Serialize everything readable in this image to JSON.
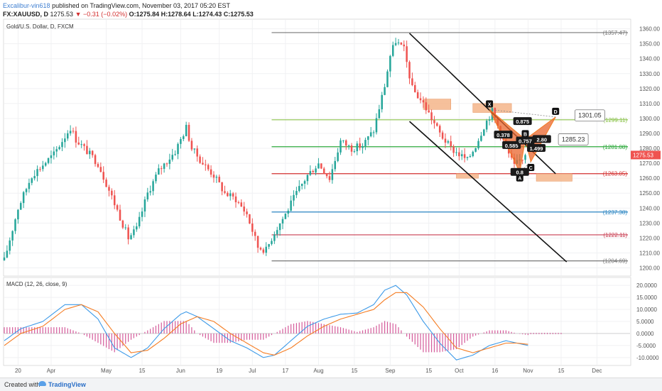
{
  "header": {
    "user": "Excalibur-vin618",
    "published_text": "published on TradingView.com, November 03, 2017 05:20 EST",
    "symbol": "FX:XAUUSD, D",
    "last": "1275.53",
    "change": "−0.31 (−0.02%)",
    "o": "O:1275.84",
    "h": "H:1278.64",
    "l": "L:1274.43",
    "c": "C:1275.53"
  },
  "footer": {
    "created_with": "Created with",
    "brand": "TradingView"
  },
  "colors": {
    "up": "#26a69a",
    "down": "#ef5350",
    "macd": "#3d9ae8",
    "signal": "#f57c22",
    "hist": "#d45a9a",
    "zone": "#f5b58a",
    "pattern": "#f57c22",
    "pattern_fill": "#e8642c"
  },
  "chart_data": [
    {
      "type": "candlestick",
      "title": "Gold/U.S. Dollar, D, FXCM",
      "ylim": [
        1195,
        1366
      ],
      "yticks": [
        1200,
        1210,
        1220,
        1230,
        1240,
        1250,
        1260,
        1270,
        1280,
        1290,
        1300,
        1310,
        1320,
        1330,
        1340,
        1350,
        1360
      ],
      "xlim": [
        0,
        227
      ],
      "xticks": [
        {
          "x": 5,
          "label": "20"
        },
        {
          "x": 17,
          "label": "Apr"
        },
        {
          "x": 37,
          "label": "May"
        },
        {
          "x": 50,
          "label": "15"
        },
        {
          "x": 64,
          "label": "Jun"
        },
        {
          "x": 78,
          "label": "19"
        },
        {
          "x": 90,
          "label": "Jul"
        },
        {
          "x": 102,
          "label": "17"
        },
        {
          "x": 114,
          "label": "Aug"
        },
        {
          "x": 127,
          "label": "15"
        },
        {
          "x": 140,
          "label": "Sep"
        },
        {
          "x": 154,
          "label": "15"
        },
        {
          "x": 165,
          "label": "Oct"
        },
        {
          "x": 178,
          "label": "16"
        },
        {
          "x": 190,
          "label": "Nov"
        },
        {
          "x": 202,
          "label": "15"
        },
        {
          "x": 215,
          "label": "Dec"
        }
      ],
      "last_price": 1275.53,
      "last_price_label": "1275.53",
      "anchors": [
        [
          0,
          1205
        ],
        [
          5,
          1240
        ],
        [
          10,
          1262
        ],
        [
          18,
          1276
        ],
        [
          24,
          1294
        ],
        [
          26,
          1286
        ],
        [
          30,
          1278
        ],
        [
          34,
          1270
        ],
        [
          38,
          1252
        ],
        [
          42,
          1234
        ],
        [
          45,
          1220
        ],
        [
          48,
          1226
        ],
        [
          52,
          1250
        ],
        [
          56,
          1265
        ],
        [
          62,
          1278
        ],
        [
          66,
          1294
        ],
        [
          68,
          1280
        ],
        [
          72,
          1270
        ],
        [
          76,
          1262
        ],
        [
          80,
          1250
        ],
        [
          84,
          1246
        ],
        [
          88,
          1236
        ],
        [
          92,
          1214
        ],
        [
          95,
          1212
        ],
        [
          98,
          1224
        ],
        [
          102,
          1236
        ],
        [
          106,
          1250
        ],
        [
          110,
          1262
        ],
        [
          114,
          1270
        ],
        [
          118,
          1260
        ],
        [
          122,
          1285
        ],
        [
          126,
          1280
        ],
        [
          130,
          1282
        ],
        [
          134,
          1292
        ],
        [
          138,
          1322
        ],
        [
          140,
          1342
        ],
        [
          142,
          1352
        ],
        [
          145,
          1346
        ],
        [
          148,
          1320
        ],
        [
          152,
          1310
        ],
        [
          155,
          1300
        ],
        [
          158,
          1290
        ],
        [
          162,
          1280
        ],
        [
          165,
          1276
        ],
        [
          168,
          1272
        ],
        [
          171,
          1282
        ],
        [
          174,
          1295
        ],
        [
          177,
          1305
        ],
        [
          180,
          1290
        ],
        [
          183,
          1276
        ],
        [
          185,
          1268
        ],
        [
          187,
          1272
        ],
        [
          189,
          1275.5
        ]
      ],
      "last_bar": 189,
      "fib_levels": [
        {
          "price": 1357.47,
          "label": "(1357.47)",
          "color": "#787878"
        },
        {
          "price": 1299.11,
          "label": "(1299.11)",
          "color": "#8bc34a"
        },
        {
          "price": 1281.08,
          "label": "(1281.08)",
          "color": "#2eaa3c"
        },
        {
          "price": 1263.05,
          "label": "(1263.05)",
          "color": "#d32f2f"
        },
        {
          "price": 1237.38,
          "label": "(1237.38)",
          "color": "#2a85c2"
        },
        {
          "price": 1222.11,
          "label": "(1222.11)",
          "color": "#c83c50"
        },
        {
          "price": 1204.69,
          "label": "(1204.69)",
          "color": "#787878"
        }
      ],
      "fib_x_start": 97,
      "channel": [
        {
          "from": [
            147,
            1357
          ],
          "to": [
            200,
            1263
          ]
        },
        {
          "from": [
            147,
            1298
          ],
          "to": [
            204,
            1204
          ]
        }
      ],
      "zones": [
        {
          "x1": 152,
          "x2": 162,
          "p1": 1313,
          "p2": 1306
        },
        {
          "x1": 170,
          "x2": 184,
          "p1": 1310,
          "p2": 1304
        },
        {
          "x1": 164,
          "x2": 172,
          "p1": 1263,
          "p2": 1260
        },
        {
          "x1": 193,
          "x2": 206,
          "p1": 1263,
          "p2": 1258
        }
      ],
      "harmonic_points": [
        {
          "id": "X",
          "x": 176,
          "price": 1306,
          "label": "X"
        },
        {
          "id": "A",
          "x": 187,
          "price": 1264,
          "label": "A"
        },
        {
          "id": "B",
          "x": 189,
          "price": 1286,
          "label": "B"
        },
        {
          "id": "C",
          "x": 191,
          "price": 1271,
          "label": "C"
        },
        {
          "id": "D",
          "x": 200,
          "price": 1301,
          "label": "D"
        }
      ],
      "ratios": [
        {
          "x": 188,
          "price": 1298,
          "text": "0.875"
        },
        {
          "x": 181,
          "price": 1289,
          "text": "0.378"
        },
        {
          "x": 184,
          "price": 1282,
          "text": "0.585"
        },
        {
          "x": 189,
          "price": 1285,
          "text": "0.757"
        },
        {
          "x": 193,
          "price": 1280,
          "text": "1.499"
        },
        {
          "x": 195,
          "price": 1286,
          "text": "2.80"
        },
        {
          "x": 187,
          "price": 1264,
          "text": "0.8"
        }
      ],
      "callouts": [
        {
          "x": 207,
          "price": 1302,
          "text": "1301.05"
        },
        {
          "x": 201,
          "price": 1286,
          "text": "1285.23"
        }
      ]
    },
    {
      "type": "line",
      "title": "MACD (12, 26, close, 9)",
      "ylim": [
        -13,
        23
      ],
      "yticks": [
        20,
        15,
        10,
        5,
        0,
        -5,
        -10
      ],
      "ytick_labels": [
        "20.0000",
        "15.0000",
        "10.0000",
        "5.0000",
        "0.0000",
        "-5.0000",
        "-10.0000"
      ],
      "series": [
        {
          "key": "macd",
          "anchors": [
            [
              0,
              -3
            ],
            [
              6,
              2
            ],
            [
              14,
              5
            ],
            [
              22,
              12
            ],
            [
              28,
              12
            ],
            [
              34,
              6
            ],
            [
              40,
              -6
            ],
            [
              46,
              -10
            ],
            [
              52,
              -6
            ],
            [
              58,
              2
            ],
            [
              64,
              8
            ],
            [
              66,
              9
            ],
            [
              70,
              7
            ],
            [
              76,
              2
            ],
            [
              82,
              -3
            ],
            [
              88,
              -6
            ],
            [
              94,
              -10
            ],
            [
              98,
              -9
            ],
            [
              104,
              -3
            ],
            [
              110,
              3
            ],
            [
              116,
              6
            ],
            [
              122,
              8
            ],
            [
              128,
              8.5
            ],
            [
              134,
              12
            ],
            [
              138,
              18
            ],
            [
              142,
              20
            ],
            [
              146,
              16
            ],
            [
              152,
              5
            ],
            [
              158,
              -4
            ],
            [
              164,
              -11
            ],
            [
              170,
              -9
            ],
            [
              176,
              -5
            ],
            [
              182,
              -3
            ],
            [
              186,
              -4
            ],
            [
              190,
              -5
            ]
          ]
        },
        {
          "key": "signal",
          "anchors": [
            [
              0,
              -5
            ],
            [
              6,
              0
            ],
            [
              14,
              3
            ],
            [
              22,
              10
            ],
            [
              28,
              12
            ],
            [
              34,
              9
            ],
            [
              40,
              0
            ],
            [
              46,
              -8
            ],
            [
              52,
              -7
            ],
            [
              58,
              -2
            ],
            [
              64,
              4
            ],
            [
              70,
              7
            ],
            [
              76,
              5
            ],
            [
              82,
              0
            ],
            [
              88,
              -4
            ],
            [
              94,
              -8
            ],
            [
              98,
              -9
            ],
            [
              104,
              -6
            ],
            [
              110,
              -1
            ],
            [
              116,
              3
            ],
            [
              122,
              6
            ],
            [
              128,
              8
            ],
            [
              134,
              10
            ],
            [
              138,
              14
            ],
            [
              142,
              17
            ],
            [
              146,
              17
            ],
            [
              152,
              11
            ],
            [
              158,
              2
            ],
            [
              164,
              -6
            ],
            [
              170,
              -8
            ],
            [
              176,
              -6
            ],
            [
              182,
              -4
            ],
            [
              186,
              -4
            ],
            [
              190,
              -4.5
            ]
          ]
        }
      ],
      "last_bar": 190
    }
  ]
}
